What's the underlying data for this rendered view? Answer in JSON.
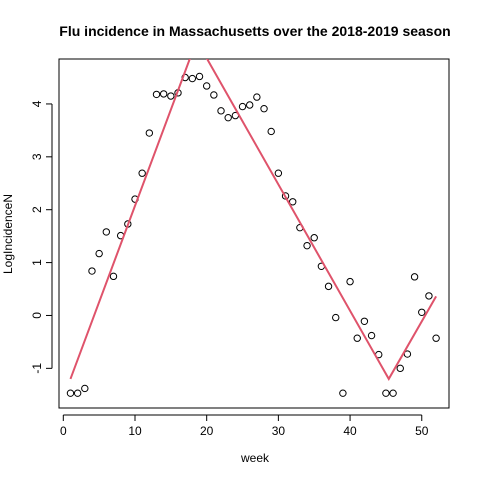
{
  "chart_data": {
    "type": "scatter",
    "title": "Flu incidence in Massachusetts over the 2018-2019 season",
    "xlabel": "week",
    "ylabel": "LogIncidenceN",
    "xlim": [
      -0.6,
      53.8
    ],
    "ylim": [
      -1.75,
      4.85
    ],
    "xticks": [
      0,
      10,
      20,
      30,
      40,
      50
    ],
    "yticks": [
      -1,
      0,
      1,
      2,
      3,
      4
    ],
    "grid": false,
    "legend": "none",
    "points_color": "#000000",
    "fit_color": "#DF536B",
    "points": [
      {
        "x": 1,
        "y": -1.47
      },
      {
        "x": 2,
        "y": -1.47
      },
      {
        "x": 3,
        "y": -1.38
      },
      {
        "x": 4,
        "y": 0.84
      },
      {
        "x": 5,
        "y": 1.17
      },
      {
        "x": 6,
        "y": 1.58
      },
      {
        "x": 7,
        "y": 0.74
      },
      {
        "x": 8,
        "y": 1.51
      },
      {
        "x": 9,
        "y": 1.73
      },
      {
        "x": 10,
        "y": 2.2
      },
      {
        "x": 11,
        "y": 2.69
      },
      {
        "x": 12,
        "y": 3.45
      },
      {
        "x": 13,
        "y": 4.18
      },
      {
        "x": 14,
        "y": 4.19
      },
      {
        "x": 15,
        "y": 4.15
      },
      {
        "x": 16,
        "y": 4.21
      },
      {
        "x": 17,
        "y": 4.5
      },
      {
        "x": 18,
        "y": 4.48
      },
      {
        "x": 19,
        "y": 4.52
      },
      {
        "x": 20,
        "y": 4.34
      },
      {
        "x": 21,
        "y": 4.17
      },
      {
        "x": 22,
        "y": 3.87
      },
      {
        "x": 23,
        "y": 3.74
      },
      {
        "x": 24,
        "y": 3.78
      },
      {
        "x": 25,
        "y": 3.95
      },
      {
        "x": 26,
        "y": 3.98
      },
      {
        "x": 27,
        "y": 4.13
      },
      {
        "x": 28,
        "y": 3.91
      },
      {
        "x": 29,
        "y": 3.48
      },
      {
        "x": 30,
        "y": 2.69
      },
      {
        "x": 31,
        "y": 2.26
      },
      {
        "x": 32,
        "y": 2.15
      },
      {
        "x": 33,
        "y": 1.66
      },
      {
        "x": 34,
        "y": 1.32
      },
      {
        "x": 35,
        "y": 1.47
      },
      {
        "x": 36,
        "y": 0.93
      },
      {
        "x": 37,
        "y": 0.55
      },
      {
        "x": 38,
        "y": -0.04
      },
      {
        "x": 39,
        "y": -1.47
      },
      {
        "x": 40,
        "y": 0.64
      },
      {
        "x": 41,
        "y": -0.43
      },
      {
        "x": 42,
        "y": -0.11
      },
      {
        "x": 43,
        "y": -0.38
      },
      {
        "x": 44,
        "y": -0.74
      },
      {
        "x": 45,
        "y": -1.47
      },
      {
        "x": 46,
        "y": -1.47
      },
      {
        "x": 47,
        "y": -1.0
      },
      {
        "x": 48,
        "y": -0.73
      },
      {
        "x": 49,
        "y": 0.73
      },
      {
        "x": 50,
        "y": 0.06
      },
      {
        "x": 51,
        "y": 0.37
      },
      {
        "x": 52,
        "y": -0.43
      }
    ],
    "fit_line": [
      {
        "x": 1,
        "y": -1.2
      },
      {
        "x": 18.6,
        "y": 5.2
      },
      {
        "x": 45.4,
        "y": -1.2
      },
      {
        "x": 52,
        "y": 0.36
      }
    ]
  }
}
